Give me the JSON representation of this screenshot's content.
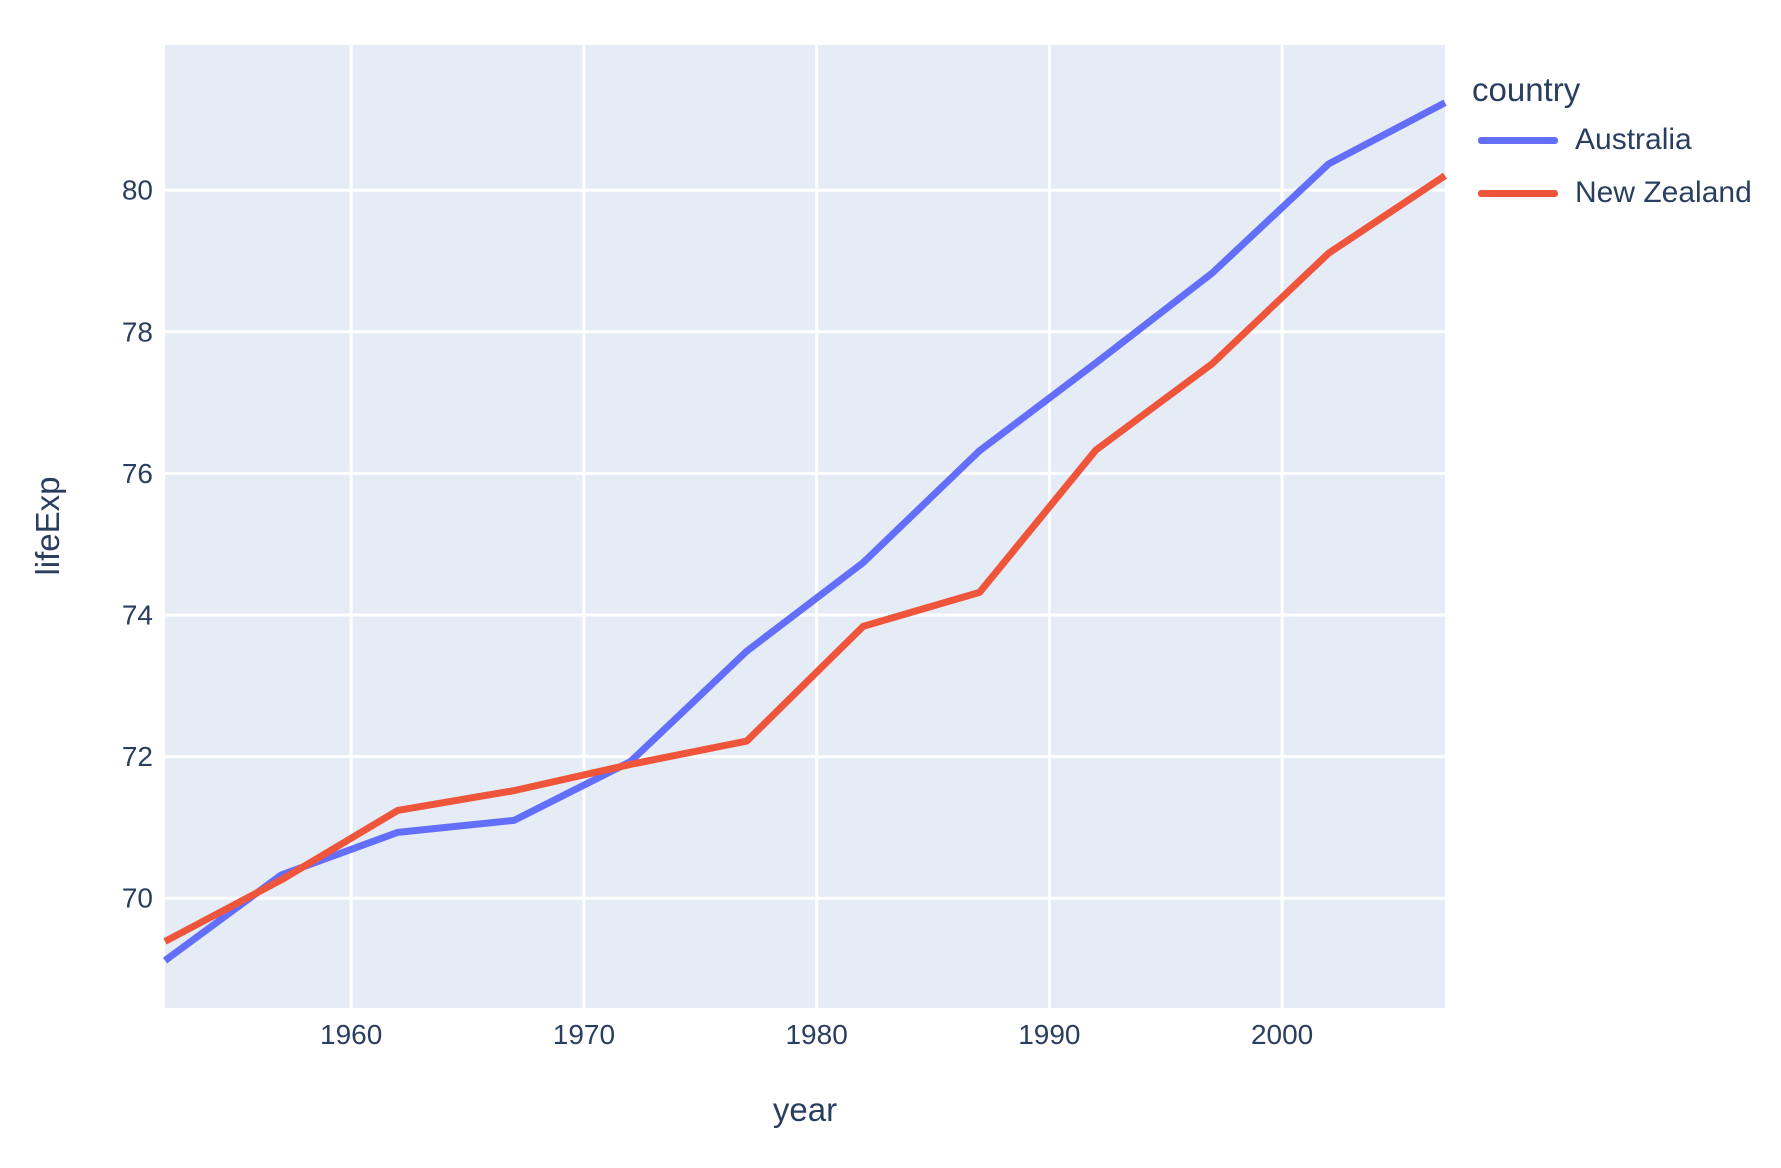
{
  "colors": {
    "page_background": "#ffffff",
    "plot_background": "#E5ECF6",
    "gridline": "#ffffff",
    "text": "#2a3f5f"
  },
  "legend": {
    "title": "country",
    "items": [
      "Australia",
      "New Zealand"
    ]
  },
  "chart_data": {
    "type": "line",
    "title": "",
    "xlabel": "year",
    "ylabel": "lifeExp",
    "x": [
      1952,
      1957,
      1962,
      1967,
      1972,
      1977,
      1982,
      1987,
      1992,
      1997,
      2002,
      2007
    ],
    "series": [
      {
        "name": "Australia",
        "color": "#636EFA",
        "values": [
          69.12,
          70.33,
          70.93,
          71.1,
          71.93,
          73.49,
          74.74,
          76.32,
          77.56,
          78.83,
          80.37,
          81.235
        ]
      },
      {
        "name": "New Zealand",
        "color": "#EF553B",
        "values": [
          69.39,
          70.26,
          71.24,
          71.52,
          71.89,
          72.22,
          73.84,
          74.32,
          76.33,
          77.55,
          79.11,
          80.204
        ]
      }
    ],
    "xlim": [
      1952,
      2007
    ],
    "ylim": [
      68.45,
      82.05
    ],
    "x_ticks": [
      1960,
      1970,
      1980,
      1990,
      2000
    ],
    "y_ticks": [
      70,
      72,
      74,
      76,
      78,
      80
    ],
    "grid": true,
    "legend_title": "country",
    "legend_position": "right"
  }
}
